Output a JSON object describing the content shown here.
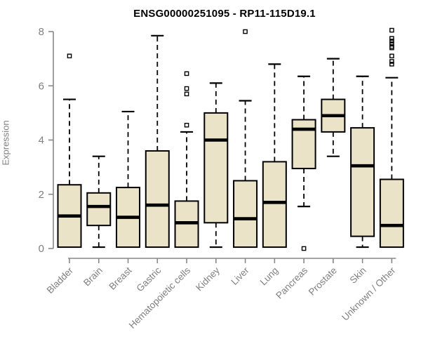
{
  "title": "ENSG00000251095 - RP11-115D19.1",
  "chart_data": {
    "type": "boxplot",
    "title": "ENSG00000251095 - RP11-115D19.1",
    "xlabel": "",
    "ylabel": "Expression",
    "ylim": [
      0,
      8
    ],
    "yticks": [
      0,
      2,
      4,
      6,
      8
    ],
    "grid": false,
    "legend": "none",
    "categories": [
      "Bladder",
      "Brain",
      "Breast",
      "Gastric",
      "Hematopoietic cells",
      "Kidney",
      "Liver",
      "Lung",
      "Pancreas",
      "Prostate",
      "Skin",
      "Unknown / Other"
    ],
    "series": [
      {
        "name": "Bladder",
        "low": 0.05,
        "q1": 0.05,
        "median": 1.2,
        "q3": 2.35,
        "high": 5.5,
        "outliers": [
          7.1
        ]
      },
      {
        "name": "Brain",
        "low": 0.05,
        "q1": 0.85,
        "median": 1.55,
        "q3": 2.05,
        "high": 3.4,
        "outliers": []
      },
      {
        "name": "Breast",
        "low": 0.05,
        "q1": 0.05,
        "median": 1.15,
        "q3": 2.25,
        "high": 5.05,
        "outliers": []
      },
      {
        "name": "Gastric",
        "low": 0.05,
        "q1": 0.05,
        "median": 1.6,
        "q3": 3.6,
        "high": 7.85,
        "outliers": []
      },
      {
        "name": "Hematopoietic cells",
        "low": 0.05,
        "q1": 0.05,
        "median": 0.95,
        "q3": 1.75,
        "high": 4.3,
        "outliers": [
          4.55,
          5.7,
          5.9,
          6.45
        ]
      },
      {
        "name": "Kidney",
        "low": 0.05,
        "q1": 0.95,
        "median": 4.0,
        "q3": 5.0,
        "high": 6.1,
        "outliers": []
      },
      {
        "name": "Liver",
        "low": 0.05,
        "q1": 0.05,
        "median": 1.1,
        "q3": 2.5,
        "high": 5.45,
        "outliers": [
          8.0
        ]
      },
      {
        "name": "Lung",
        "low": 0.05,
        "q1": 0.05,
        "median": 1.7,
        "q3": 3.2,
        "high": 6.8,
        "outliers": []
      },
      {
        "name": "Pancreas",
        "low": 1.55,
        "q1": 2.95,
        "median": 4.4,
        "q3": 4.75,
        "high": 6.35,
        "outliers": [
          0.0
        ]
      },
      {
        "name": "Prostate",
        "low": 3.4,
        "q1": 4.3,
        "median": 4.9,
        "q3": 5.5,
        "high": 7.0,
        "outliers": []
      },
      {
        "name": "Skin",
        "low": 0.05,
        "q1": 0.45,
        "median": 3.05,
        "q3": 4.45,
        "high": 6.35,
        "outliers": []
      },
      {
        "name": "Unknown / Other",
        "low": 0.05,
        "q1": 0.05,
        "median": 0.85,
        "q3": 2.55,
        "high": 6.3,
        "outliers": [
          6.8,
          6.9,
          7.1,
          7.4,
          7.45,
          7.55,
          7.65,
          7.75,
          8.05
        ]
      }
    ],
    "colors": {
      "box_fill": "#EBE3C8",
      "box_stroke": "#000000",
      "axis": "#888888",
      "tick_label": "#7f7f7f",
      "title": "#000000",
      "background": "#ffffff"
    }
  }
}
